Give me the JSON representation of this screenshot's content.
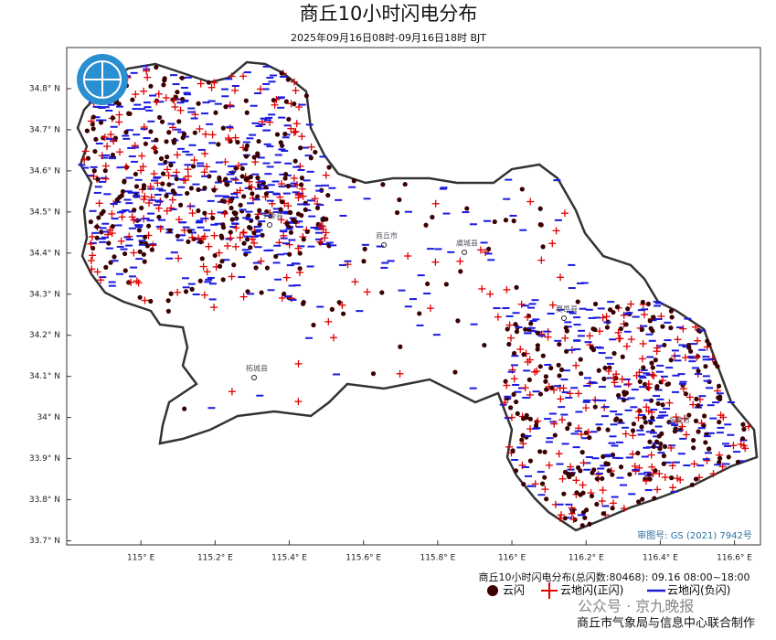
{
  "title": "商丘10小时闪电分布",
  "subtitle": "2025年09月16日08时-09月16日18时 BJT",
  "map": {
    "xlim": [
      114.8,
      116.67
    ],
    "ylim": [
      33.69,
      34.9
    ],
    "xticks": [
      {
        "value": 115,
        "label": "115° E"
      },
      {
        "value": 115.2,
        "label": "115.2° E"
      },
      {
        "value": 115.4,
        "label": "115.4° E"
      },
      {
        "value": 115.6,
        "label": "115.6° E"
      },
      {
        "value": 115.8,
        "label": "115.8° E"
      },
      {
        "value": 116,
        "label": "116° E"
      },
      {
        "value": 116.2,
        "label": "116.2° E"
      },
      {
        "value": 116.4,
        "label": "116.4° E"
      },
      {
        "value": 116.6,
        "label": "116.6° E"
      }
    ],
    "yticks": [
      {
        "value": 34.8,
        "label": "34.8° N"
      },
      {
        "value": 34.7,
        "label": "34.7° N"
      },
      {
        "value": 34.6,
        "label": "34.6° N"
      },
      {
        "value": 34.5,
        "label": "34.5° N"
      },
      {
        "value": 34.4,
        "label": "34.4° N"
      },
      {
        "value": 34.3,
        "label": "34.3° N"
      },
      {
        "value": 34.2,
        "label": "34.2° N"
      },
      {
        "value": 34.1,
        "label": "34.1° N"
      },
      {
        "value": 34,
        "label": "34° N"
      },
      {
        "value": 33.9,
        "label": "33.9° N"
      },
      {
        "value": 33.8,
        "label": "33.8° N"
      },
      {
        "value": 33.7,
        "label": "33.7° N"
      }
    ],
    "places": [
      "宁陵县",
      "商丘市",
      "虞城县",
      "夏邑县",
      "柘城县",
      "永城市"
    ],
    "review_number": "审图号: GS (2021) 7942号"
  },
  "legend": {
    "title": "商丘10小时闪电分布(总闪数:80468): 09.16 08:00~18:00",
    "items": [
      "云闪",
      "云地闪(正闪)",
      "云地闪(负闪)"
    ]
  },
  "watermark": "公众号 · 京九晚报",
  "footer": "商丘市气象局与信息中心联合制作"
}
